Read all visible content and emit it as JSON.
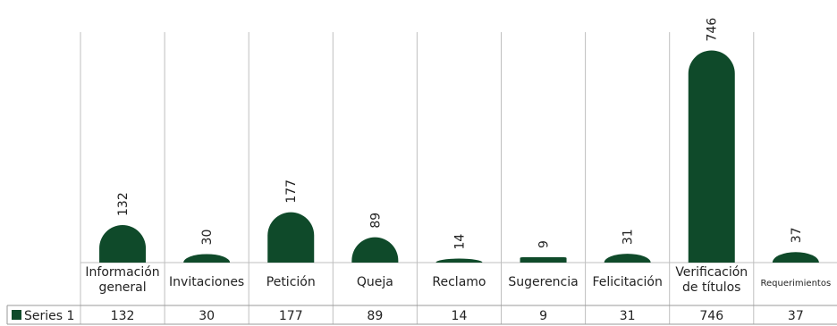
{
  "chart_data": {
    "type": "bar",
    "categories": [
      [
        "Información",
        "general"
      ],
      [
        "Invitaciones"
      ],
      [
        "Petición"
      ],
      [
        "Queja"
      ],
      [
        "Reclamo"
      ],
      [
        "Sugerencia"
      ],
      [
        "Felicitación"
      ],
      [
        "Verificación",
        "de títulos"
      ],
      [
        "Requerimientos"
      ]
    ],
    "series": [
      {
        "name": "Series 1",
        "values": [
          132,
          30,
          177,
          89,
          14,
          9,
          31,
          746,
          37
        ]
      }
    ],
    "data_labels": [
      "132",
      "30",
      "177",
      "89",
      "14",
      "9",
      "31",
      "746",
      "37"
    ],
    "table": {
      "legend_key": "Series 1",
      "values": [
        "132",
        "30",
        "177",
        "89",
        "14",
        "9",
        "31",
        "746",
        "37"
      ]
    },
    "ylim": [
      0,
      760
    ],
    "colors": {
      "bar": "#0f4a2a",
      "grid": "#bfbfbf",
      "table_border": "#9a9a9a"
    },
    "legend_placement": "data-table"
  }
}
